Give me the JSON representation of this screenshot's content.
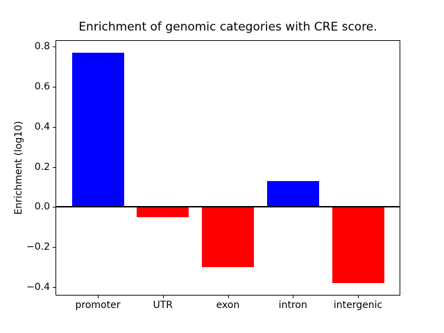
{
  "figure": {
    "background": "#ffffff"
  },
  "chart_data": {
    "type": "bar",
    "title": "Enrichment of genomic categories with CRE score.",
    "xlabel": "",
    "ylabel": "Enrichment (log10)",
    "categories": [
      "promoter",
      "UTR",
      "exon",
      "intron",
      "intergenic"
    ],
    "values": [
      0.77,
      -0.05,
      -0.3,
      0.13,
      -0.38
    ],
    "bar_colors": [
      "#0000ff",
      "#ff0000",
      "#ff0000",
      "#0000ff",
      "#ff0000"
    ],
    "positive_color": "#0000ff",
    "negative_color": "#ff0000",
    "bar_width": 0.8,
    "xlim": [
      -0.64,
      4.64
    ],
    "ylim": [
      -0.4375,
      0.8275
    ],
    "yticks": [
      0.8,
      0.6,
      0.4,
      0.2,
      0.0,
      -0.2,
      -0.4
    ],
    "ytick_labels": [
      "0.8",
      "0.6",
      "0.4",
      "0.2",
      "0.0",
      "−0.2",
      "−0.4"
    ],
    "zero_line": {
      "value": 0.0,
      "color": "#000000",
      "thickness_px": 2
    },
    "grid": false,
    "axis_color": "#000000",
    "text_color": "#000000"
  }
}
